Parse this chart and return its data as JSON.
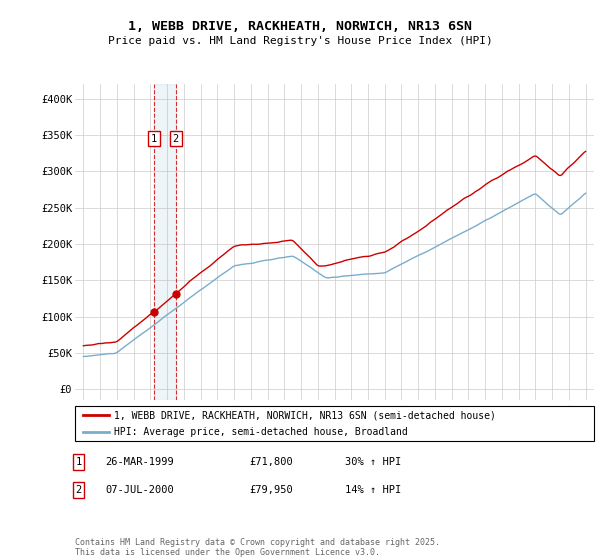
{
  "title": "1, WEBB DRIVE, RACKHEATH, NORWICH, NR13 6SN",
  "subtitle": "Price paid vs. HM Land Registry's House Price Index (HPI)",
  "legend_line1": "1, WEBB DRIVE, RACKHEATH, NORWICH, NR13 6SN (semi-detached house)",
  "legend_line2": "HPI: Average price, semi-detached house, Broadland",
  "footer": "Contains HM Land Registry data © Crown copyright and database right 2025.\nThis data is licensed under the Open Government Licence v3.0.",
  "transaction1_label": "1",
  "transaction1_date": "26-MAR-1999",
  "transaction1_price": "£71,800",
  "transaction1_hpi": "30% ↑ HPI",
  "transaction2_label": "2",
  "transaction2_date": "07-JUL-2000",
  "transaction2_price": "£79,950",
  "transaction2_hpi": "14% ↑ HPI",
  "red_color": "#cc0000",
  "blue_color": "#7aadcc",
  "background_color": "#ffffff",
  "grid_color": "#cccccc",
  "marker1_x": 1999.23,
  "marker2_x": 2000.52,
  "ylim_max": 420000,
  "ylim_min": -15000,
  "xlim_min": 1994.5,
  "xlim_max": 2025.5
}
